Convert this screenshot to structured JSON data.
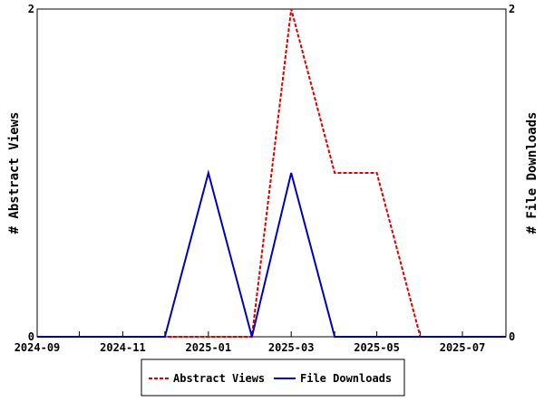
{
  "chart_data": {
    "type": "line",
    "x": [
      "2024-09",
      "2024-10",
      "2024-11",
      "2024-12",
      "2025-01",
      "2025-02",
      "2025-03",
      "2025-04",
      "2025-05",
      "2025-06",
      "2025-07",
      "2025-08"
    ],
    "x_tick_labels": [
      "2024-09",
      "2024-11",
      "2025-01",
      "2025-03",
      "2025-05",
      "2025-07"
    ],
    "ylabel": "# Abstract Views",
    "ylabel_right": "# File Downloads",
    "ylim": [
      0,
      2
    ],
    "y_tick_labels": [
      "0",
      "2"
    ],
    "y_right_tick_labels": [
      "0",
      "2"
    ],
    "grid": false,
    "legend_position": "bottom",
    "series": [
      {
        "name": "Abstract Views",
        "color": "#dd0000",
        "style": "dashed",
        "values": [
          0,
          0,
          0,
          0,
          0,
          0,
          2,
          1,
          1,
          0,
          0,
          0
        ]
      },
      {
        "name": "File Downloads",
        "color": "#0000bb",
        "style": "solid",
        "values": [
          0,
          0,
          0,
          0,
          1,
          0,
          1,
          0,
          0,
          0,
          0,
          0
        ]
      }
    ]
  }
}
